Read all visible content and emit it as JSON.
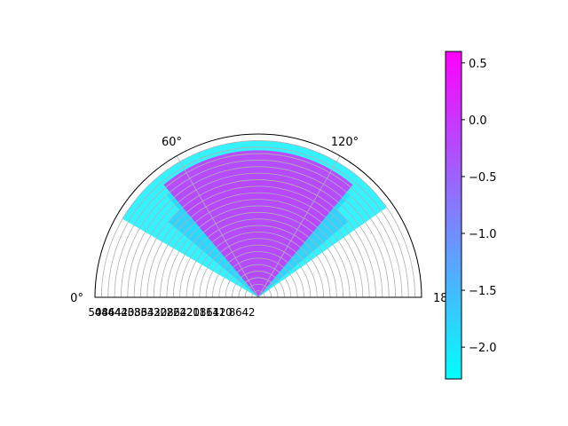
{
  "chart_data": [
    {
      "type": "polar-bar",
      "projection": "polar",
      "theta_range_deg": [
        0,
        180
      ],
      "theta_ticks": [
        {
          "value": 0,
          "label": "0°"
        },
        {
          "value": 60,
          "label": "60°"
        },
        {
          "value": 120,
          "label": "120°"
        },
        {
          "value": 180,
          "label": "180°"
        }
      ],
      "radial_ticks": [
        "2",
        "4",
        "6",
        "8",
        "10",
        "12",
        "14",
        "16",
        "18",
        "20",
        "22",
        "24",
        "26",
        "28",
        "30",
        "32",
        "34",
        "36",
        "38",
        "40",
        "42",
        "44",
        "46",
        "48",
        "50"
      ],
      "rlim": [
        0,
        50
      ],
      "grid": true,
      "colormap": "cool",
      "bars": [
        {
          "theta_start_deg": 48,
          "theta_end_deg": 132,
          "r": 42,
          "value": -1.75,
          "color": "#63a0ff"
        },
        {
          "theta_start_deg": 48,
          "theta_end_deg": 132,
          "r": 40,
          "value": -1.2,
          "color": "#a060ff"
        },
        {
          "theta_start_deg": 40,
          "theta_end_deg": 140,
          "r": 36,
          "value": 0.4,
          "color": "#ee10ff"
        },
        {
          "theta_start_deg": 45,
          "theta_end_deg": 120,
          "r": 30,
          "value": -0.9,
          "color": "#7c88ff"
        },
        {
          "theta_start_deg": 30,
          "theta_end_deg": 145,
          "r": 48,
          "value": -2.2,
          "color": "#10f0ff"
        },
        {
          "theta_start_deg": 50,
          "theta_end_deg": 130,
          "r": 45,
          "value": 0.2,
          "color": "#d030ff"
        }
      ]
    },
    {
      "type": "colorbar",
      "colormap": "cool",
      "vmin": -2.28,
      "vmax": 0.6,
      "ticks": [
        {
          "value": 0.5,
          "label": "0.5"
        },
        {
          "value": 0.0,
          "label": "0.0"
        },
        {
          "value": -0.5,
          "label": "−0.5"
        },
        {
          "value": -1.0,
          "label": "−1.0"
        },
        {
          "value": -1.5,
          "label": "−1.5"
        },
        {
          "value": -2.0,
          "label": "−2.0"
        }
      ]
    }
  ]
}
